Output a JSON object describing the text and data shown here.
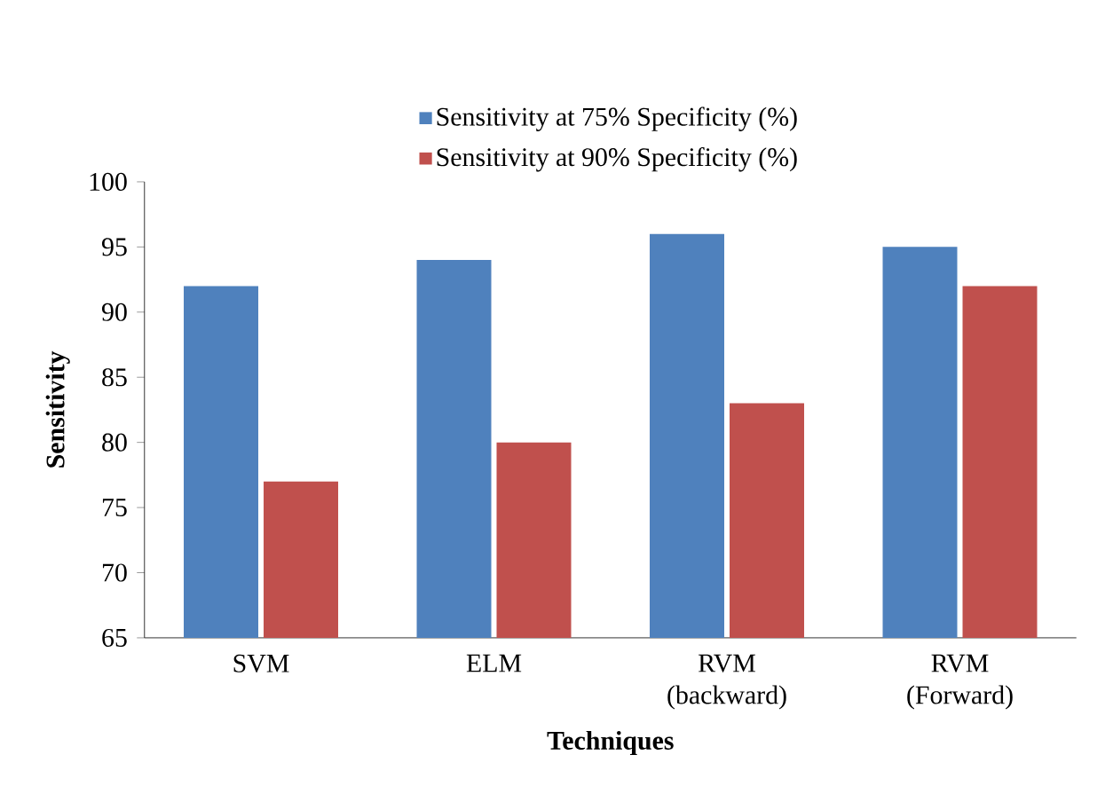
{
  "chart_data": {
    "type": "bar",
    "xlabel": "Techniques",
    "ylabel": "Sensitivity",
    "categories": [
      "SVM",
      "ELM",
      "RVM (backward)",
      "RVM (Forward)"
    ],
    "series": [
      {
        "name": "Sensitivity at 75% Specificity (%)",
        "color": "#4f81bd",
        "values": [
          92,
          94,
          96,
          95
        ]
      },
      {
        "name": "Sensitivity at 90% Specificity (%)",
        "color": "#c0504d",
        "values": [
          77,
          80,
          83,
          92
        ]
      }
    ],
    "ylim": [
      65,
      100
    ],
    "yticks": [
      65,
      70,
      75,
      80,
      85,
      90,
      95,
      100
    ],
    "legend": "top"
  }
}
